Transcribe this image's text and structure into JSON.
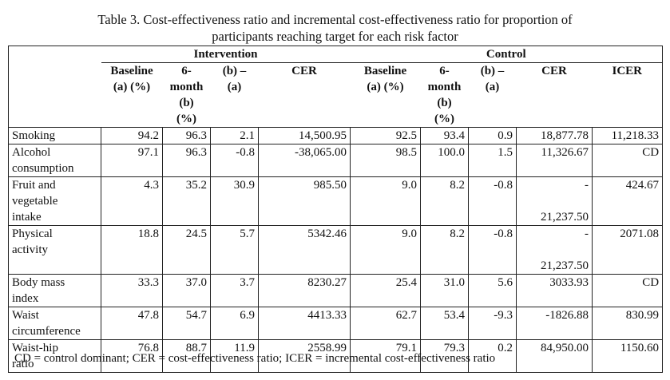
{
  "caption": {
    "line1": "Table 3. Cost-effectiveness ratio and incremental cost-effectiveness ratio for proportion of",
    "line2": "participants reaching target for each risk factor"
  },
  "header": {
    "group_intervention": "Intervention",
    "group_control": "Control",
    "columns": [
      [
        "Baseline",
        "(a) (%)"
      ],
      [
        "6-",
        "month",
        "(b)",
        "(%)"
      ],
      [
        "(b) –",
        "(a)"
      ],
      [
        "CER"
      ],
      [
        "Baseline",
        "(a) (%)"
      ],
      [
        "6-",
        "month",
        "(b)",
        "(%)"
      ],
      [
        "(b) –",
        "(a)"
      ],
      [
        "CER"
      ],
      [
        "ICER"
      ]
    ]
  },
  "rows": [
    {
      "label": [
        "Smoking"
      ],
      "cells": [
        "94.2",
        "96.3",
        "2.1",
        "14,500.95",
        "92.5",
        "93.4",
        "0.9",
        "18,877.78",
        "11,218.33"
      ]
    },
    {
      "label": [
        "Alcohol",
        "consumption"
      ],
      "cells": [
        "97.1",
        "96.3",
        "-0.8",
        "-38,065.00",
        "98.5",
        "100.0",
        "1.5",
        "11,326.67",
        "CD"
      ]
    },
    {
      "label": [
        "Fruit and",
        "vegetable",
        "intake"
      ],
      "cells": [
        "4.3",
        "35.2",
        "30.9",
        "985.50",
        "9.0",
        "8.2",
        "-0.8",
        "-",
        "424.67"
      ],
      "cer2_extra": "21,237.50"
    },
    {
      "label": [
        "Physical",
        "activity"
      ],
      "cells": [
        "18.8",
        "24.5",
        "5.7",
        "5342.46",
        "9.0",
        "8.2",
        "-0.8",
        "-",
        "2071.08"
      ],
      "cer2_extra": "21,237.50"
    },
    {
      "label": [
        "Body mass",
        "index"
      ],
      "cells": [
        "33.3",
        "37.0",
        "3.7",
        "8230.27",
        "25.4",
        "31.0",
        "5.6",
        "3033.93",
        "CD"
      ]
    },
    {
      "label": [
        "Waist",
        "circumference"
      ],
      "cells": [
        "47.8",
        "54.7",
        "6.9",
        "4413.33",
        "62.7",
        "53.4",
        "-9.3",
        "-1826.88",
        "830.99"
      ]
    },
    {
      "label": [
        "Waist-hip",
        "ratio"
      ],
      "cells": [
        "76.8",
        "88.7",
        "11.9",
        "2558.99",
        "79.1",
        "79.3",
        "0.2",
        "84,950.00",
        "1150.60"
      ]
    }
  ],
  "footnote": "CD = control dominant; CER = cost-effectiveness ratio; ICER = incremental cost-effectiveness ratio"
}
